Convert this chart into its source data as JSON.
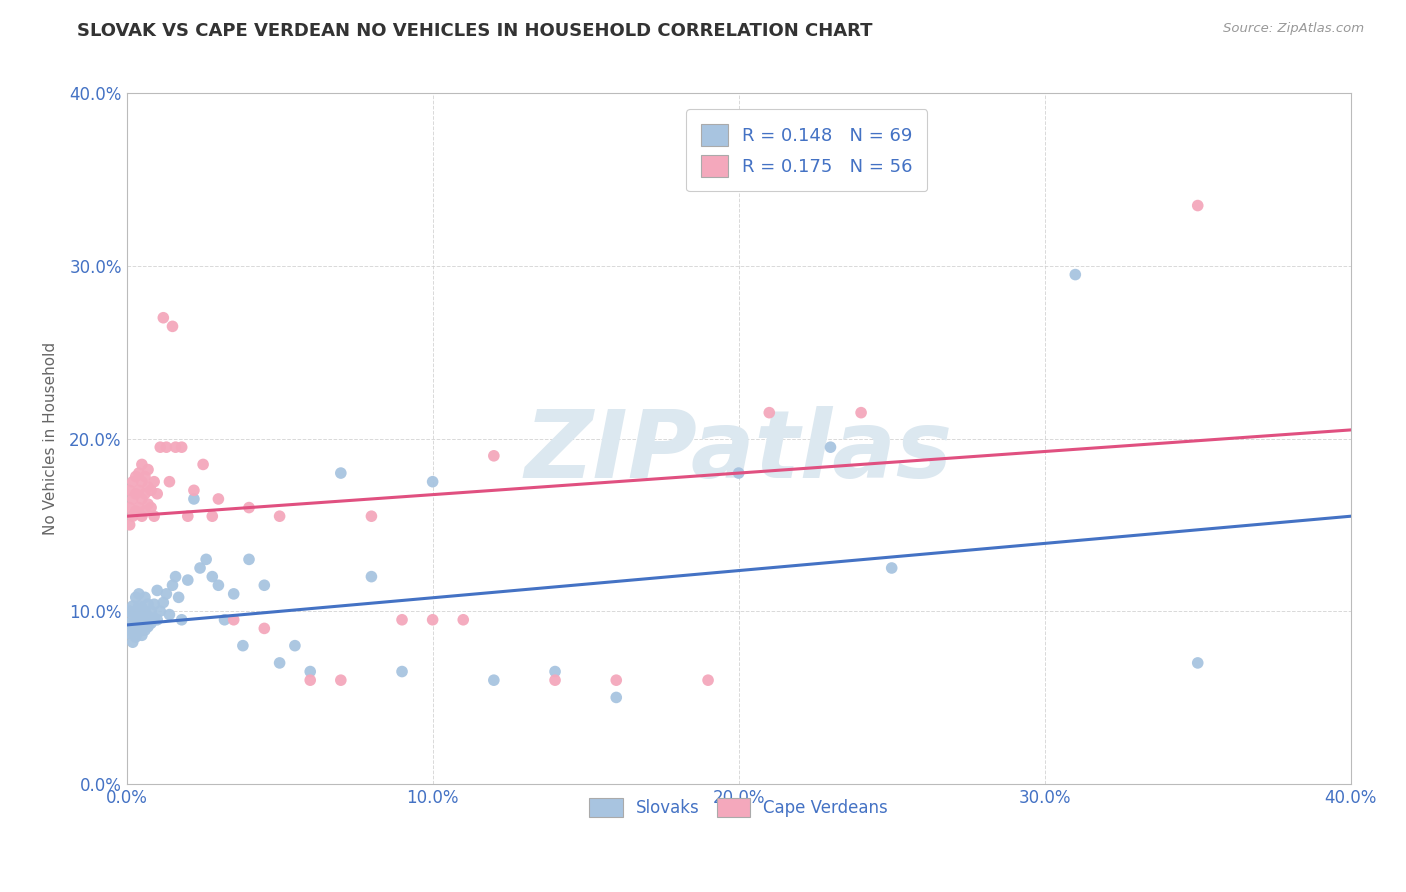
{
  "title": "SLOVAK VS CAPE VERDEAN NO VEHICLES IN HOUSEHOLD CORRELATION CHART",
  "source": "Source: ZipAtlas.com",
  "ylabel": "No Vehicles in Household",
  "xlabel": "",
  "xlim": [
    0.0,
    0.4
  ],
  "ylim": [
    0.0,
    0.4
  ],
  "xtick_vals": [
    0.0,
    0.1,
    0.2,
    0.3,
    0.4
  ],
  "ytick_vals": [
    0.0,
    0.1,
    0.2,
    0.3,
    0.4
  ],
  "xtick_labels": [
    "0.0%",
    "10.0%",
    "20.0%",
    "30.0%",
    "40.0%"
  ],
  "ytick_labels": [
    "0.0%",
    "10.0%",
    "20.0%",
    "30.0%",
    "40.0%"
  ],
  "slovak_color": "#a8c4e0",
  "cape_verdean_color": "#f4a8bc",
  "slovak_line_color": "#4472c4",
  "cape_verdean_line_color": "#e05080",
  "legend_R_slovak": "0.148",
  "legend_N_slovak": "69",
  "legend_R_cape": "0.175",
  "legend_N_cape": "56",
  "watermark": "ZIPatlas",
  "watermark_color": "#dce8f0",
  "background_color": "#ffffff",
  "grid_color": "#d0d0d0",
  "title_color": "#333333",
  "axis_label_color": "#666666",
  "tick_label_color": "#4472c4",
  "slovak_x": [
    0.001,
    0.001,
    0.001,
    0.002,
    0.002,
    0.002,
    0.002,
    0.002,
    0.003,
    0.003,
    0.003,
    0.003,
    0.003,
    0.004,
    0.004,
    0.004,
    0.004,
    0.004,
    0.005,
    0.005,
    0.005,
    0.005,
    0.006,
    0.006,
    0.006,
    0.006,
    0.007,
    0.007,
    0.007,
    0.008,
    0.008,
    0.009,
    0.009,
    0.01,
    0.01,
    0.011,
    0.012,
    0.013,
    0.014,
    0.015,
    0.016,
    0.017,
    0.018,
    0.02,
    0.022,
    0.024,
    0.026,
    0.028,
    0.03,
    0.032,
    0.035,
    0.038,
    0.04,
    0.045,
    0.05,
    0.055,
    0.06,
    0.07,
    0.08,
    0.09,
    0.1,
    0.12,
    0.14,
    0.16,
    0.2,
    0.23,
    0.25,
    0.31,
    0.35
  ],
  "slovak_y": [
    0.087,
    0.093,
    0.1,
    0.082,
    0.088,
    0.092,
    0.098,
    0.103,
    0.085,
    0.09,
    0.095,
    0.1,
    0.108,
    0.088,
    0.093,
    0.098,
    0.103,
    0.11,
    0.086,
    0.091,
    0.096,
    0.102,
    0.089,
    0.094,
    0.1,
    0.108,
    0.091,
    0.097,
    0.104,
    0.093,
    0.1,
    0.096,
    0.104,
    0.095,
    0.112,
    0.1,
    0.105,
    0.11,
    0.098,
    0.115,
    0.12,
    0.108,
    0.095,
    0.118,
    0.165,
    0.125,
    0.13,
    0.12,
    0.115,
    0.095,
    0.11,
    0.08,
    0.13,
    0.115,
    0.07,
    0.08,
    0.065,
    0.18,
    0.12,
    0.065,
    0.175,
    0.06,
    0.065,
    0.05,
    0.18,
    0.195,
    0.125,
    0.295,
    0.07
  ],
  "cape_x": [
    0.001,
    0.001,
    0.001,
    0.002,
    0.002,
    0.002,
    0.003,
    0.003,
    0.003,
    0.004,
    0.004,
    0.004,
    0.005,
    0.005,
    0.005,
    0.005,
    0.006,
    0.006,
    0.006,
    0.007,
    0.007,
    0.007,
    0.008,
    0.008,
    0.009,
    0.009,
    0.01,
    0.011,
    0.012,
    0.013,
    0.014,
    0.015,
    0.016,
    0.018,
    0.02,
    0.022,
    0.025,
    0.028,
    0.03,
    0.035,
    0.04,
    0.045,
    0.05,
    0.06,
    0.07,
    0.08,
    0.09,
    0.1,
    0.11,
    0.12,
    0.14,
    0.16,
    0.19,
    0.21,
    0.24,
    0.35
  ],
  "cape_y": [
    0.15,
    0.16,
    0.17,
    0.155,
    0.165,
    0.175,
    0.158,
    0.168,
    0.178,
    0.16,
    0.17,
    0.18,
    0.155,
    0.165,
    0.175,
    0.185,
    0.158,
    0.168,
    0.178,
    0.162,
    0.172,
    0.182,
    0.16,
    0.17,
    0.155,
    0.175,
    0.168,
    0.195,
    0.27,
    0.195,
    0.175,
    0.265,
    0.195,
    0.195,
    0.155,
    0.17,
    0.185,
    0.155,
    0.165,
    0.095,
    0.16,
    0.09,
    0.155,
    0.06,
    0.06,
    0.155,
    0.095,
    0.095,
    0.095,
    0.19,
    0.06,
    0.06,
    0.06,
    0.215,
    0.215,
    0.335
  ]
}
